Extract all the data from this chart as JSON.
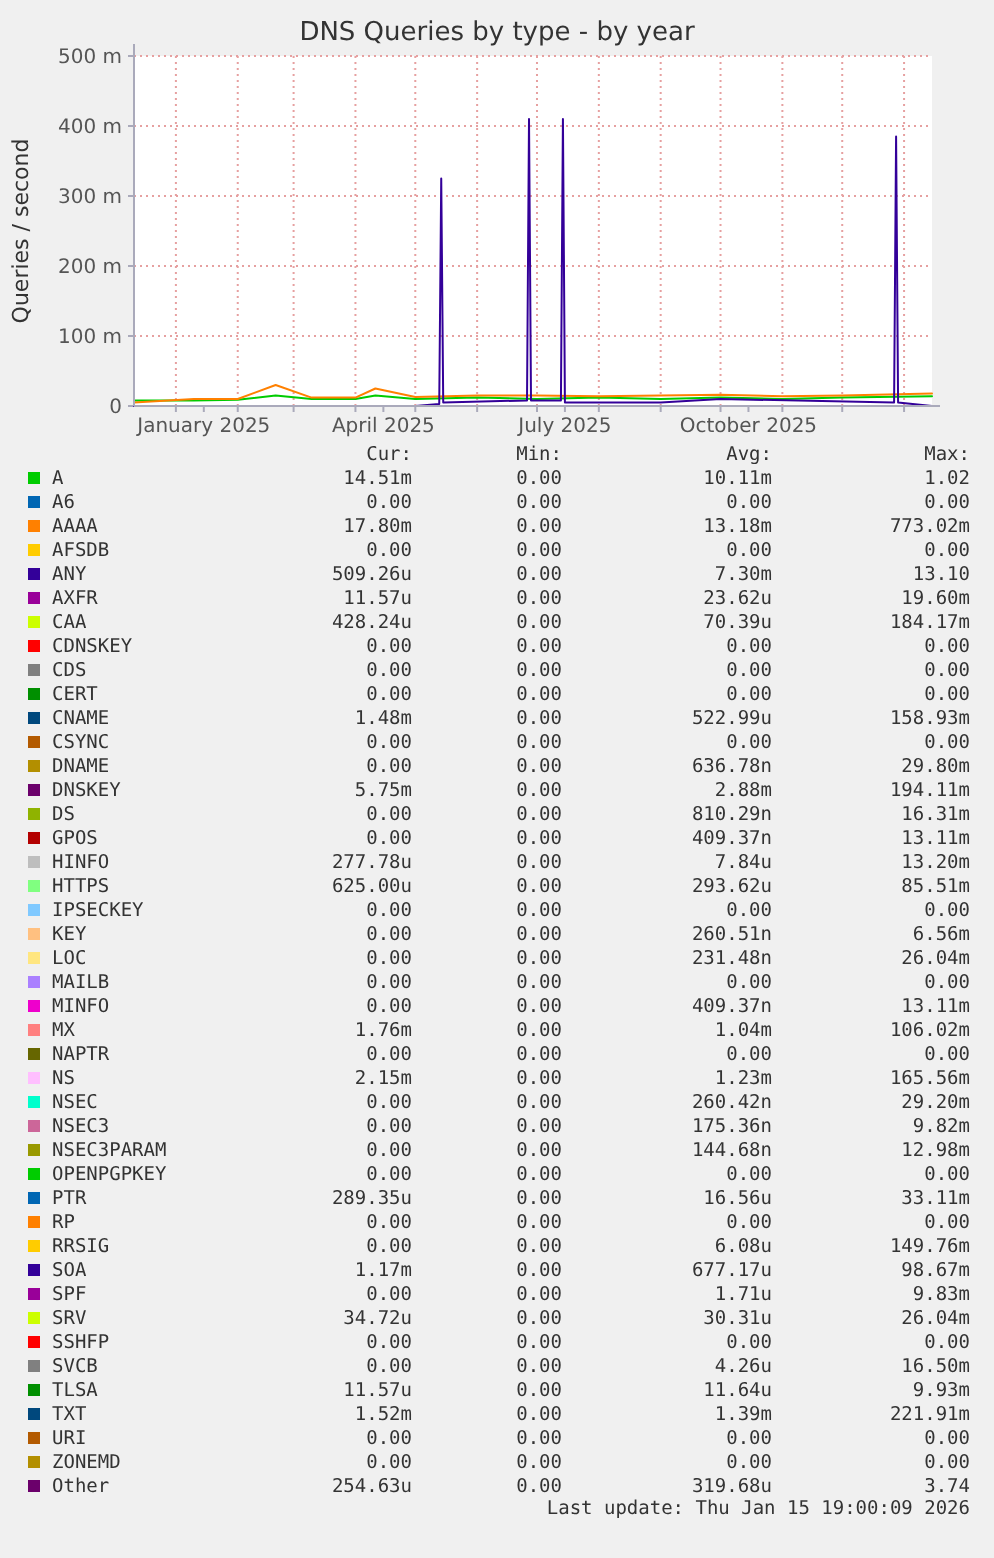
{
  "chart_data": {
    "type": "line",
    "title": "DNS Queries by type - by year",
    "ylabel": "Queries / second",
    "xlim": [
      "2024-12-11",
      "2026-01-15"
    ],
    "xticks": [
      {
        "value": "2025-01-01",
        "label": null
      },
      {
        "value": "2025-01-15",
        "label": "January 2025"
      },
      {
        "value": "2025-02-01",
        "label": null
      },
      {
        "value": "2025-03-01",
        "label": null
      },
      {
        "value": "2025-04-01",
        "label": null
      },
      {
        "value": "2025-04-15",
        "label": "April 2025"
      },
      {
        "value": "2025-05-01",
        "label": null
      },
      {
        "value": "2025-06-01",
        "label": null
      },
      {
        "value": "2025-07-01",
        "label": null
      },
      {
        "value": "2025-07-15",
        "label": "July 2025"
      },
      {
        "value": "2025-08-01",
        "label": null
      },
      {
        "value": "2025-09-01",
        "label": null
      },
      {
        "value": "2025-10-01",
        "label": null
      },
      {
        "value": "2025-10-15",
        "label": "October 2025"
      },
      {
        "value": "2025-11-01",
        "label": null
      },
      {
        "value": "2025-12-01",
        "label": null
      },
      {
        "value": "2026-01-01",
        "label": null
      }
    ],
    "ylim": [
      0,
      500
    ],
    "yticks": [
      0,
      {
        "value": 100,
        "label": "100 m"
      },
      {
        "value": 200,
        "label": "200 m"
      },
      {
        "value": 300,
        "label": "300 m"
      },
      {
        "value": 400,
        "label": "400 m"
      },
      {
        "value": 500,
        "label": "500 m"
      }
    ],
    "grid": true,
    "legend": "bottom",
    "series": [
      {
        "name": "A",
        "color": "#00cc00",
        "x": [
          "2024-12-11",
          "2025-01-10",
          "2025-02-01",
          "2025-02-20",
          "2025-03-10",
          "2025-04-01",
          "2025-04-11",
          "2025-05-01",
          "2025-06-01",
          "2025-07-01",
          "2025-08-01",
          "2025-09-01",
          "2025-10-01",
          "2025-11-01",
          "2025-12-01",
          "2026-01-15"
        ],
        "values": [
          8,
          8,
          9,
          15,
          10,
          10,
          15,
          10,
          12,
          10,
          12,
          10,
          12,
          10,
          12,
          14
        ]
      },
      {
        "name": "A6",
        "color": "#0066b3",
        "values": [
          null,
          null
        ]
      },
      {
        "name": "AAAA",
        "color": "#ff8000",
        "x": [
          "2024-12-11",
          "2025-01-10",
          "2025-02-01",
          "2025-02-20",
          "2025-03-10",
          "2025-04-01",
          "2025-04-11",
          "2025-05-01",
          "2025-06-01",
          "2025-07-01",
          "2025-08-01",
          "2025-09-01",
          "2025-10-01",
          "2025-11-01",
          "2025-12-01",
          "2026-01-15"
        ],
        "values": [
          5,
          10,
          10,
          30,
          12,
          12,
          25,
          13,
          15,
          15,
          14,
          15,
          16,
          14,
          15,
          18
        ]
      },
      {
        "name": "AFSDB",
        "color": "#ffcc00",
        "values": [
          null,
          null
        ]
      },
      {
        "name": "ANY",
        "color": "#330099",
        "x": [
          "2024-12-11",
          "2025-05-01",
          "2025-05-13",
          "2025-05-14",
          "2025-05-15",
          "2025-06-26",
          "2025-06-27",
          "2025-06-28",
          "2025-07-13",
          "2025-07-14",
          "2025-07-15",
          "2025-09-01",
          "2025-10-01",
          "2025-12-27",
          "2025-12-28",
          "2025-12-29",
          "2026-01-15"
        ],
        "values": [
          0,
          0,
          3,
          325,
          5,
          8,
          410,
          8,
          8,
          410,
          5,
          5,
          10,
          5,
          385,
          5,
          0
        ]
      },
      {
        "name": "AXFR",
        "color": "#990099",
        "values": [
          null,
          null
        ]
      },
      {
        "name": "CAA",
        "color": "#ccff00",
        "values": [
          null,
          null
        ]
      },
      {
        "name": "CDNSKEY",
        "color": "#ff0000",
        "values": [
          null,
          null
        ]
      },
      {
        "name": "CDS",
        "color": "#808080",
        "values": [
          null,
          null
        ]
      },
      {
        "name": "CERT",
        "color": "#008f00",
        "values": [
          null,
          null
        ]
      },
      {
        "name": "CNAME",
        "color": "#00487d",
        "values": [
          null,
          null
        ]
      },
      {
        "name": "CSYNC",
        "color": "#b35a00",
        "values": [
          null,
          null
        ]
      },
      {
        "name": "DNAME",
        "color": "#b38f00",
        "values": [
          null,
          null
        ]
      },
      {
        "name": "DNSKEY",
        "color": "#6b006b",
        "values": [
          null,
          null
        ]
      },
      {
        "name": "DS",
        "color": "#8fb300",
        "values": [
          null,
          null
        ]
      },
      {
        "name": "GPOS",
        "color": "#b30000",
        "values": [
          null,
          null
        ]
      },
      {
        "name": "HINFO",
        "color": "#bebebe",
        "values": [
          null,
          null
        ]
      },
      {
        "name": "HTTPS",
        "color": "#80ff80",
        "values": [
          null,
          null
        ]
      },
      {
        "name": "IPSECKEY",
        "color": "#80c9ff",
        "values": [
          null,
          null
        ]
      },
      {
        "name": "KEY",
        "color": "#ffc080",
        "values": [
          null,
          null
        ]
      },
      {
        "name": "LOC",
        "color": "#ffe680",
        "values": [
          null,
          null
        ]
      },
      {
        "name": "MAILB",
        "color": "#aa80ff",
        "values": [
          null,
          null
        ]
      },
      {
        "name": "MINFO",
        "color": "#ee00cc",
        "values": [
          null,
          null
        ]
      },
      {
        "name": "MX",
        "color": "#ff8080",
        "values": [
          null,
          null
        ]
      },
      {
        "name": "NAPTR",
        "color": "#666600",
        "values": [
          null,
          null
        ]
      },
      {
        "name": "NS",
        "color": "#ffbfff",
        "values": [
          null,
          null
        ]
      },
      {
        "name": "NSEC",
        "color": "#00ffcc",
        "values": [
          null,
          null
        ]
      },
      {
        "name": "NSEC3",
        "color": "#cc6699",
        "values": [
          null,
          null
        ]
      },
      {
        "name": "NSEC3PARAM",
        "color": "#999900",
        "values": [
          null,
          null
        ]
      },
      {
        "name": "OPENPGPKEY",
        "color": "#00cc00",
        "values": [
          null,
          null
        ]
      },
      {
        "name": "PTR",
        "color": "#0066b3",
        "values": [
          null,
          null
        ]
      },
      {
        "name": "RP",
        "color": "#ff8000",
        "values": [
          null,
          null
        ]
      },
      {
        "name": "RRSIG",
        "color": "#ffcc00",
        "values": [
          null,
          null
        ]
      },
      {
        "name": "SOA",
        "color": "#330099",
        "values": [
          null,
          null
        ]
      },
      {
        "name": "SPF",
        "color": "#990099",
        "values": [
          null,
          null
        ]
      },
      {
        "name": "SRV",
        "color": "#ccff00",
        "values": [
          null,
          null
        ]
      },
      {
        "name": "SSHFP",
        "color": "#ff0000",
        "values": [
          null,
          null
        ]
      },
      {
        "name": "SVCB",
        "color": "#808080",
        "values": [
          null,
          null
        ]
      },
      {
        "name": "TLSA",
        "color": "#008f00",
        "values": [
          null,
          null
        ]
      },
      {
        "name": "TXT",
        "color": "#00487d",
        "values": [
          null,
          null
        ]
      },
      {
        "name": "URI",
        "color": "#b35a00",
        "values": [
          null,
          null
        ]
      },
      {
        "name": "ZONEMD",
        "color": "#b38f00",
        "values": [
          null,
          null
        ]
      },
      {
        "name": "Other",
        "color": "#6b006b",
        "values": [
          null,
          null
        ]
      }
    ],
    "annotations": [
      "Cur:",
      "Min:",
      "Avg:",
      "Max:",
      "14.51m",
      "0.00",
      "10.11m",
      "1.02",
      "0.00",
      "0.00",
      "0.00",
      "0.00",
      "17.80m",
      "0.00",
      "13.18m",
      "773.02m",
      "0.00",
      "0.00",
      "0.00",
      "0.00",
      "509.26u",
      "0.00",
      "7.30m",
      "13.10",
      "11.57u",
      "0.00",
      "23.62u",
      "19.60m",
      "428.24u",
      "0.00",
      "70.39u",
      "184.17m",
      "0.00",
      "0.00",
      "0.00",
      "0.00",
      "0.00",
      "0.00",
      "0.00",
      "0.00",
      "0.00",
      "0.00",
      "0.00",
      "0.00",
      "1.48m",
      "0.00",
      "522.99u",
      "158.93m",
      "0.00",
      "0.00",
      "0.00",
      "0.00",
      "0.00",
      "0.00",
      "636.78n",
      "29.80m",
      "5.75m",
      "0.00",
      "2.88m",
      "194.11m",
      "0.00",
      "0.00",
      "810.29n",
      "16.31m",
      "0.00",
      "0.00",
      "409.37n",
      "13.11m",
      "277.78u",
      "0.00",
      "7.84u",
      "13.20m",
      "625.00u",
      "0.00",
      "293.62u",
      "85.51m",
      "0.00",
      "0.00",
      "0.00",
      "0.00",
      "0.00",
      "0.00",
      "260.51n",
      "6.56m",
      "0.00",
      "0.00",
      "231.48n",
      "26.04m",
      "0.00",
      "0.00",
      "0.00",
      "0.00",
      "0.00",
      "0.00",
      "409.37n",
      "13.11m",
      "1.76m",
      "0.00",
      "1.04m",
      "106.02m",
      "0.00",
      "0.00",
      "0.00",
      "0.00",
      "2.15m",
      "0.00",
      "1.23m",
      "165.56m",
      "0.00",
      "0.00",
      "260.42n",
      "29.20m",
      "0.00",
      "0.00",
      "175.36n",
      "9.82m",
      "0.00",
      "0.00",
      "144.68n",
      "12.98m",
      "0.00",
      "0.00",
      "0.00",
      "0.00",
      "289.35u",
      "0.00",
      "16.56u",
      "33.11m",
      "0.00",
      "0.00",
      "0.00",
      "0.00",
      "0.00",
      "0.00",
      "6.08u",
      "149.76m",
      "1.17m",
      "0.00",
      "677.17u",
      "98.67m",
      "0.00",
      "0.00",
      "1.71u",
      "9.83m",
      "34.72u",
      "0.00",
      "30.31u",
      "26.04m",
      "0.00",
      "0.00",
      "0.00",
      "0.00",
      "0.00",
      "0.00",
      "4.26u",
      "16.50m",
      "11.57u",
      "0.00",
      "11.64u",
      "9.93m",
      "1.52m",
      "0.00",
      "1.39m",
      "221.91m",
      "0.00",
      "0.00",
      "0.00",
      "0.00",
      "0.00",
      "0.00",
      "0.00",
      "0.00",
      "254.63u",
      "0.00",
      "319.68u",
      "3.74",
      "Last update: Thu Jan 15 19:00:09 2026"
    ]
  }
}
